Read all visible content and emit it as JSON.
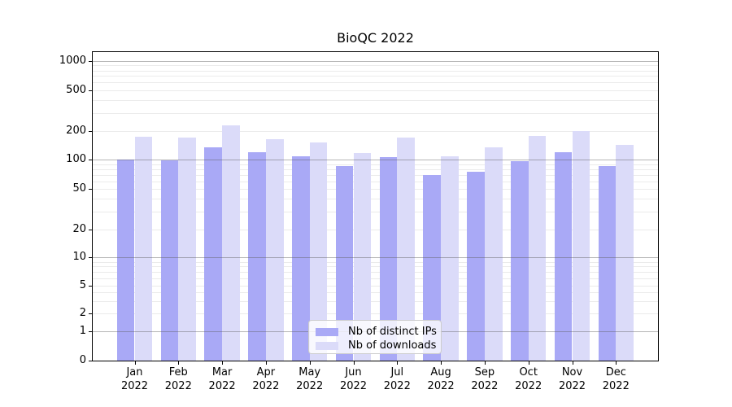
{
  "title": "BioQC 2022",
  "colors": {
    "ips_bar": "#a9a9f6",
    "downloads_bar": "#dbdbf9",
    "grid_minor": "#ebebeb",
    "grid_major": "rgba(90,90,90,0.45)",
    "axis": "#000000",
    "legend_border": "#cccccc"
  },
  "legend": {
    "items": [
      {
        "label": "Nb of distinct IPs",
        "color_key": "ips_bar"
      },
      {
        "label": "Nb of downloads",
        "color_key": "downloads_bar"
      }
    ]
  },
  "chart_data": {
    "type": "bar",
    "title": "BioQC 2022",
    "categories": [
      "Jan\n2022",
      "Feb\n2022",
      "Mar\n2022",
      "Apr\n2022",
      "May\n2022",
      "Jun\n2022",
      "Jul\n2022",
      "Aug\n2022",
      "Sep\n2022",
      "Oct\n2022",
      "Nov\n2022",
      "Dec\n2022"
    ],
    "series": [
      {
        "name": "Nb of distinct IPs",
        "values": [
          100,
          98,
          135,
          120,
          108,
          86,
          107,
          70,
          76,
          96,
          119,
          86
        ]
      },
      {
        "name": "Nb of downloads",
        "values": [
          172,
          170,
          225,
          164,
          150,
          118,
          171,
          108,
          134,
          175,
          200,
          143
        ]
      }
    ],
    "xlabel": "",
    "ylabel": "",
    "yscale": "symlog",
    "ytick_labels": [
      "0",
      "1",
      "2",
      "5",
      "10",
      "20",
      "50",
      "100",
      "200",
      "500",
      "1000"
    ],
    "ytick_values": [
      0,
      1,
      2,
      5,
      10,
      20,
      50,
      100,
      200,
      500,
      1000
    ],
    "ylim": [
      0,
      1120
    ],
    "grid": true,
    "legend_position": "lower center"
  }
}
